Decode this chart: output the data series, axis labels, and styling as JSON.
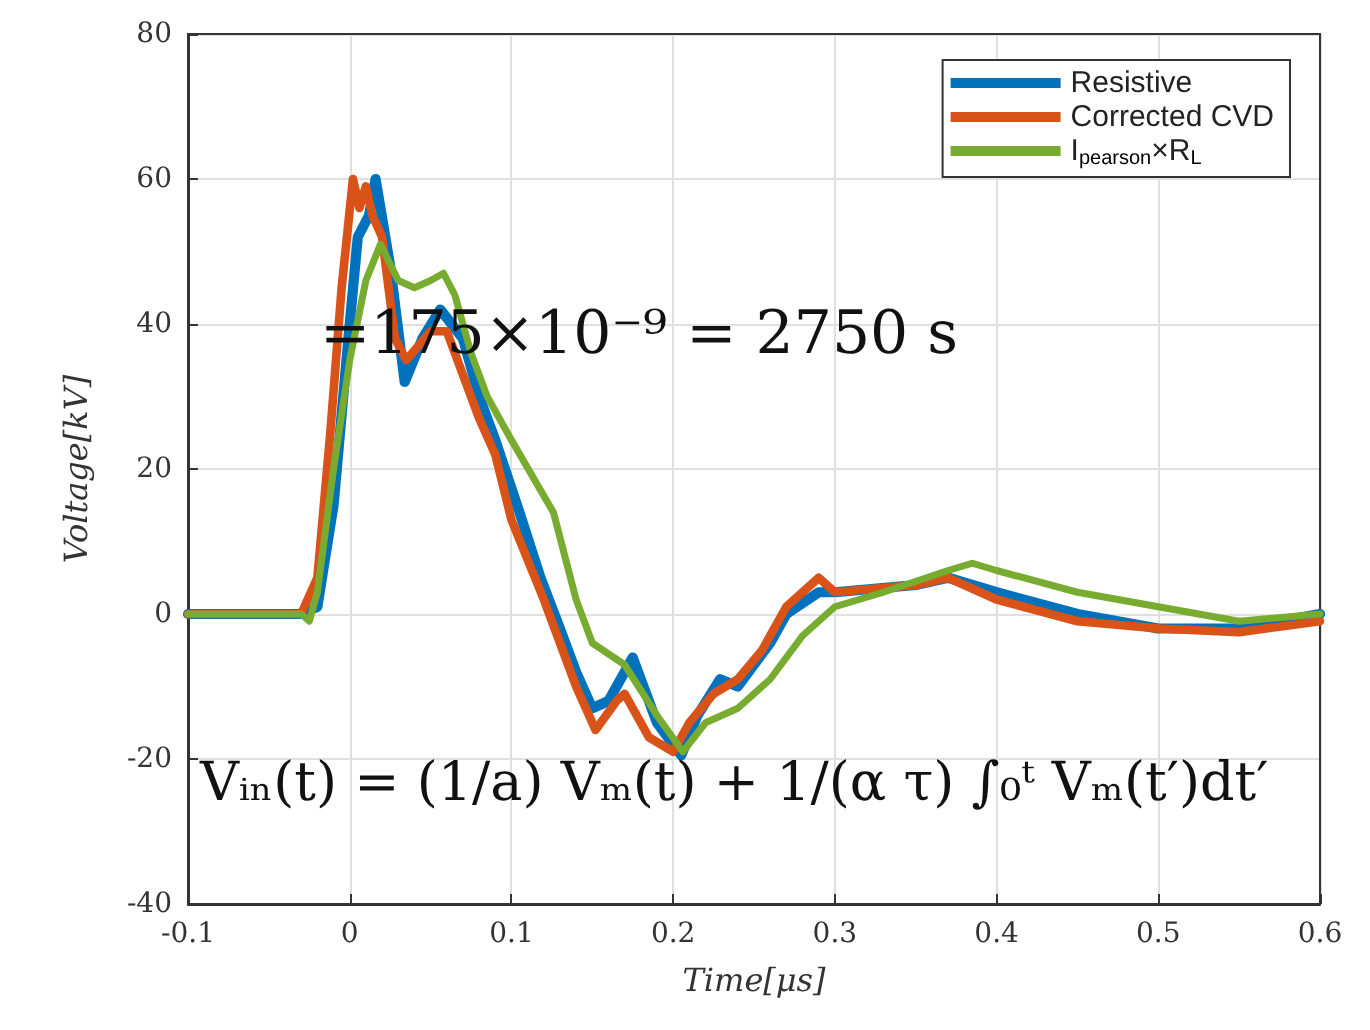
{
  "chart_data": {
    "type": "line",
    "xlabel": "Time[μs]",
    "ylabel": "Voltage[kV]",
    "xlim": [
      -0.1,
      0.6
    ],
    "xticks": [
      -0.1,
      0,
      0.1,
      0.2,
      0.3,
      0.4,
      0.5,
      0.6
    ],
    "ylim": [
      -40,
      80
    ],
    "yticks": [
      -40,
      -20,
      0,
      20,
      40,
      60,
      80
    ],
    "grid": true,
    "legend": "top right",
    "marker": "none",
    "line_style": "solid",
    "annotations": [
      "=175×10⁻⁹ = 2750 s",
      "Vᵢₙ(t) = (1/a) Vₘ(t) + 1/(α τ) ∫₀ᵗ Vₘ(t′)dt′"
    ],
    "series": [
      {
        "name": "Resistive",
        "color": "#0072bd",
        "x": [
          -0.1,
          -0.05,
          -0.03,
          -0.02,
          -0.01,
          0,
          0.005,
          0.012,
          0.016,
          0.025,
          0.034,
          0.045,
          0.056,
          0.07,
          0.08,
          0.09,
          0.105,
          0.118,
          0.13,
          0.14,
          0.15,
          0.16,
          0.175,
          0.19,
          0.205,
          0.215,
          0.229,
          0.24,
          0.26,
          0.27,
          0.29,
          0.3,
          0.35,
          0.37,
          0.4,
          0.45,
          0.5,
          0.55,
          0.6
        ],
        "values": [
          0,
          0,
          0,
          1,
          15,
          40,
          52,
          55,
          60,
          48,
          32,
          38,
          42,
          38,
          30,
          24,
          14,
          5,
          -2,
          -8,
          -13,
          -12,
          -6,
          -15,
          -19.5,
          -14,
          -9,
          -10,
          -4,
          0,
          3,
          3,
          4,
          5,
          3,
          0,
          -2,
          -2,
          0
        ]
      },
      {
        "name": "Corrected CVD",
        "color": "#d95319",
        "x": [
          -0.1,
          -0.05,
          -0.03,
          -0.02,
          -0.012,
          -0.005,
          0.002,
          0.006,
          0.01,
          0.014,
          0.02,
          0.028,
          0.035,
          0.05,
          0.06,
          0.07,
          0.08,
          0.09,
          0.1,
          0.12,
          0.14,
          0.152,
          0.165,
          0.17,
          0.185,
          0.2,
          0.21,
          0.225,
          0.24,
          0.255,
          0.27,
          0.29,
          0.3,
          0.35,
          0.37,
          0.4,
          0.45,
          0.5,
          0.55,
          0.6
        ],
        "values": [
          0,
          0,
          0,
          5,
          25,
          45,
          60,
          56,
          59,
          55,
          52,
          38,
          35,
          39,
          39,
          33,
          27,
          22,
          13,
          2,
          -10,
          -16,
          -12,
          -11,
          -17,
          -19,
          -15,
          -11,
          -9,
          -5,
          1,
          5,
          3,
          4,
          5,
          2,
          -1,
          -2,
          -2.5,
          -1
        ]
      },
      {
        "name": "I$_{pearson}$×R$_{L}$",
        "color": "#77ac30",
        "x": [
          -0.1,
          -0.05,
          -0.03,
          -0.025,
          -0.02,
          -0.01,
          0,
          0.01,
          0.019,
          0.03,
          0.04,
          0.05,
          0.058,
          0.065,
          0.075,
          0.085,
          0.1,
          0.126,
          0.14,
          0.15,
          0.17,
          0.19,
          0.206,
          0.22,
          0.24,
          0.26,
          0.28,
          0.3,
          0.33,
          0.37,
          0.385,
          0.4,
          0.45,
          0.5,
          0.55,
          0.6
        ],
        "values": [
          0,
          0,
          0,
          -1,
          3,
          20,
          35,
          46,
          51,
          46,
          45,
          46,
          47,
          44,
          36,
          30,
          24,
          14,
          2,
          -4,
          -7,
          -14,
          -19,
          -15,
          -13,
          -9,
          -3,
          1,
          3,
          6,
          7,
          6,
          3,
          1,
          -1,
          0
        ]
      }
    ]
  }
}
